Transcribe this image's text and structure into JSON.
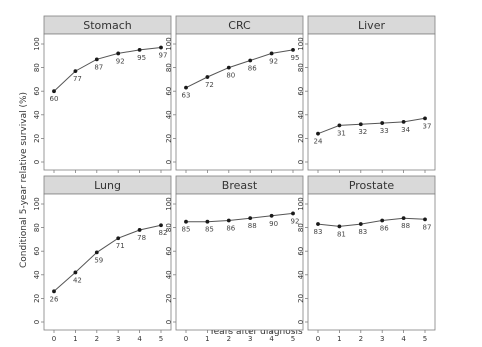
{
  "figure": {
    "ylabel": "Conditional 5-year relative survival (%)",
    "xlabel": "Years after diagnosis"
  },
  "colors": {
    "strip_bg": "#d9d9d9",
    "panel_border": "#7f7f7f",
    "line": "#555555",
    "marker": "#1a1a1a"
  },
  "chart_data": [
    {
      "type": "line",
      "title": "Stomach",
      "x": [
        0,
        1,
        2,
        3,
        4,
        5
      ],
      "values": [
        60,
        77,
        87,
        92,
        95,
        97
      ],
      "labels": [
        "60",
        "77",
        "87",
        "92",
        "95",
        "97"
      ],
      "ylim": [
        0,
        100
      ],
      "yticks": [
        0,
        20,
        40,
        60,
        80,
        100
      ],
      "grid": false
    },
    {
      "type": "line",
      "title": "CRC",
      "x": [
        0,
        1,
        2,
        3,
        4,
        5
      ],
      "values": [
        63,
        72,
        80,
        86,
        92,
        95
      ],
      "labels": [
        "63",
        "72",
        "80",
        "86",
        "92",
        "95"
      ],
      "ylim": [
        0,
        100
      ],
      "yticks": [
        0,
        20,
        40,
        60,
        80,
        100
      ],
      "grid": false
    },
    {
      "type": "line",
      "title": "Liver",
      "x": [
        0,
        1,
        2,
        3,
        4,
        5
      ],
      "values": [
        24,
        31,
        32,
        33,
        34,
        37
      ],
      "labels": [
        "24",
        "31",
        "32",
        "33",
        "34",
        "37"
      ],
      "ylim": [
        0,
        100
      ],
      "yticks": [
        0,
        20,
        40,
        60,
        80,
        100
      ],
      "grid": false
    },
    {
      "type": "line",
      "title": "Lung",
      "x": [
        0,
        1,
        2,
        3,
        4,
        5
      ],
      "values": [
        26,
        42,
        59,
        71,
        78,
        82
      ],
      "labels": [
        "26",
        "42",
        "59",
        "71",
        "78",
        "82"
      ],
      "ylim": [
        0,
        100
      ],
      "yticks": [
        0,
        20,
        40,
        60,
        80,
        100
      ],
      "grid": false
    },
    {
      "type": "line",
      "title": "Breast",
      "x": [
        0,
        1,
        2,
        3,
        4,
        5
      ],
      "values": [
        85,
        85,
        86,
        88,
        90,
        92
      ],
      "labels": [
        "85",
        "85",
        "86",
        "88",
        "90",
        "92"
      ],
      "ylim": [
        0,
        100
      ],
      "yticks": [
        0,
        20,
        40,
        60,
        80,
        100
      ],
      "grid": false
    },
    {
      "type": "line",
      "title": "Prostate",
      "x": [
        0,
        1,
        2,
        3,
        4,
        5
      ],
      "values": [
        83,
        81,
        83,
        86,
        88,
        87
      ],
      "labels": [
        "83",
        "81",
        "83",
        "86",
        "88",
        "87"
      ],
      "ylim": [
        0,
        100
      ],
      "yticks": [
        0,
        20,
        40,
        60,
        80,
        100
      ],
      "grid": false
    }
  ]
}
